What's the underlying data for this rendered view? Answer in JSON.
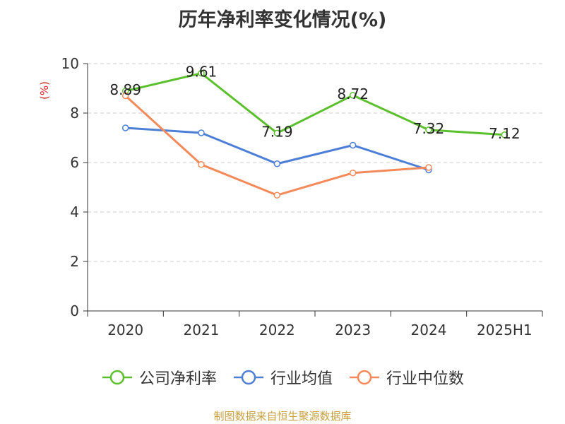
{
  "chart_data": {
    "type": "line",
    "title": "历年净利率变化情况(%)",
    "ylabel": "(%)",
    "xlabel": "",
    "categories": [
      "2020",
      "2021",
      "2022",
      "2023",
      "2024",
      "2025H1"
    ],
    "ylim": [
      0,
      10
    ],
    "yticks": [
      0,
      2,
      4,
      6,
      8,
      10
    ],
    "grid": true,
    "legend_position": "bottom",
    "series": [
      {
        "name": "公司净利率",
        "color": "#5cc02e",
        "values": [
          8.89,
          9.61,
          7.19,
          8.72,
          7.32,
          7.12
        ],
        "labels": [
          "8.89",
          "9.61",
          "7.19",
          "8.72",
          "7.32",
          "7.12"
        ]
      },
      {
        "name": "行业均值",
        "color": "#4d7fd6",
        "values": [
          7.4,
          7.2,
          5.95,
          6.7,
          5.7,
          null
        ]
      },
      {
        "name": "行业中位数",
        "color": "#f4895a",
        "values": [
          8.7,
          5.92,
          4.68,
          5.58,
          5.8,
          null
        ]
      }
    ]
  },
  "source_note": "制图数据来自恒生聚源数据库"
}
